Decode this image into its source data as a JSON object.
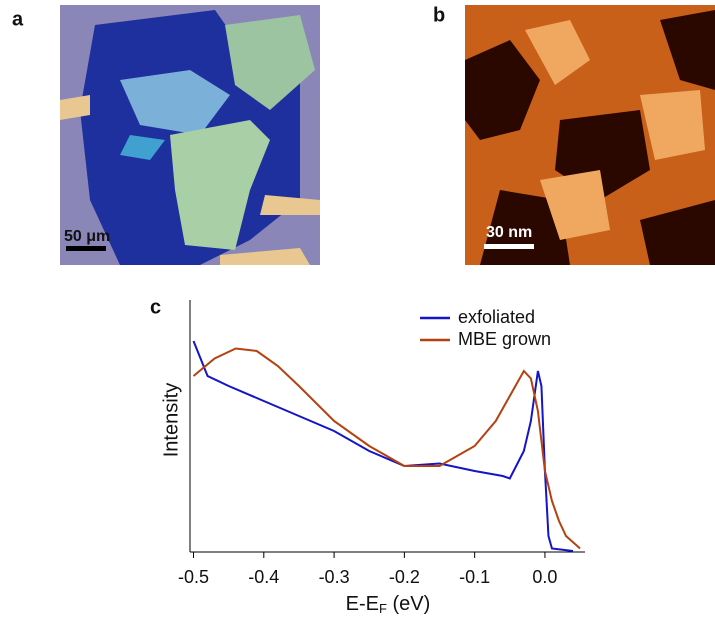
{
  "panel_a": {
    "label": "a",
    "scale_bar": "50 μm"
  },
  "panel_b": {
    "label": "b",
    "scale_bar": "30 nm"
  },
  "chart_data": {
    "type": "line",
    "label": "c",
    "ylabel": "Intensity",
    "x_label": [
      "E-E",
      "F",
      " (eV)"
    ],
    "xlim": [
      -0.505,
      0.057
    ],
    "ylim": [
      0,
      1
    ],
    "xticks": [
      -0.5,
      -0.4,
      -0.3,
      -0.2,
      -0.1,
      {
        "value": 0,
        "label": "0.0"
      }
    ],
    "legend": "upper right",
    "series": [
      {
        "name": "exfoliated",
        "color": "#1414c8",
        "x": [
          -0.5,
          -0.48,
          -0.45,
          -0.4,
          -0.35,
          -0.3,
          -0.25,
          -0.2,
          -0.15,
          -0.1,
          -0.06,
          -0.05,
          -0.03,
          -0.02,
          -0.01,
          -0.005,
          0.0,
          0.005,
          0.01,
          0.04
        ],
        "values": [
          0.84,
          0.7,
          0.66,
          0.6,
          0.54,
          0.48,
          0.4,
          0.34,
          0.35,
          0.32,
          0.3,
          0.29,
          0.4,
          0.52,
          0.72,
          0.66,
          0.32,
          0.06,
          0.01,
          0.0
        ]
      },
      {
        "name": "MBE grown",
        "color": "#b5410f",
        "x": [
          -0.5,
          -0.47,
          -0.44,
          -0.41,
          -0.38,
          -0.35,
          -0.3,
          -0.25,
          -0.2,
          -0.15,
          -0.1,
          -0.07,
          -0.05,
          -0.03,
          -0.02,
          -0.01,
          0.0,
          0.01,
          0.02,
          0.03,
          0.05
        ],
        "values": [
          0.7,
          0.77,
          0.81,
          0.8,
          0.74,
          0.66,
          0.52,
          0.42,
          0.34,
          0.34,
          0.42,
          0.52,
          0.62,
          0.72,
          0.69,
          0.56,
          0.32,
          0.2,
          0.12,
          0.06,
          0.01
        ]
      }
    ]
  }
}
